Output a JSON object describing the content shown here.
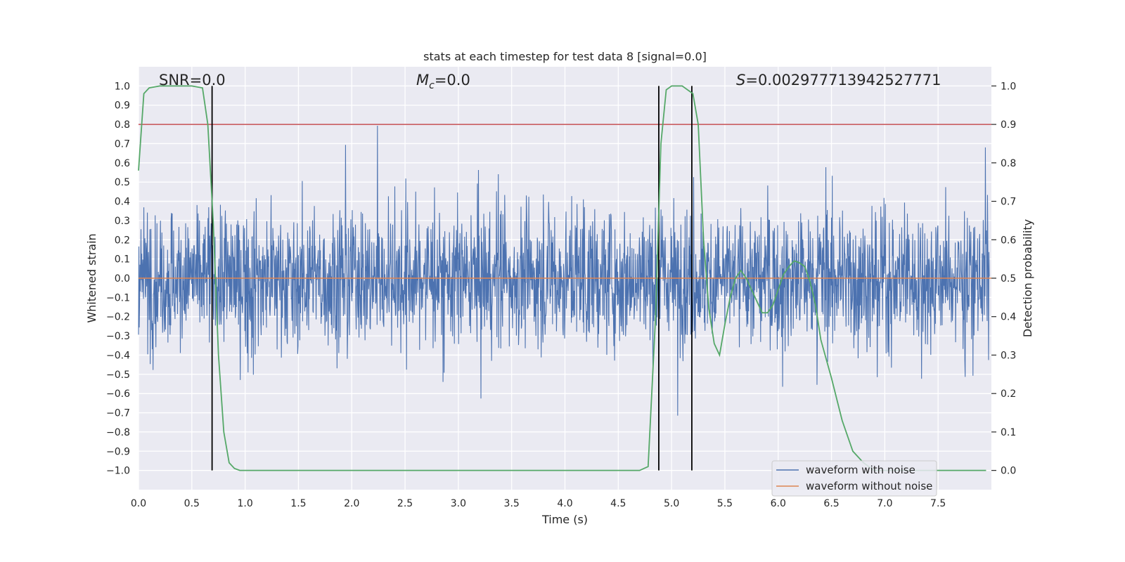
{
  "chart_data": {
    "type": "line",
    "title": "stats at each timestep for test data 8 [signal=0.0]",
    "xlabel": "Time (s)",
    "ylabel": "Whitened strain",
    "ylabel_right": "Detection probability",
    "xlim": [
      0.0,
      8.0
    ],
    "ylim": [
      -1.1,
      1.1
    ],
    "ylim_right": [
      -0.05,
      1.05
    ],
    "x_ticks": [
      "0.0",
      "0.5",
      "1.0",
      "1.5",
      "2.0",
      "2.5",
      "3.0",
      "3.5",
      "4.0",
      "4.5",
      "5.0",
      "5.5",
      "6.0",
      "6.5",
      "7.0",
      "7.5"
    ],
    "y_ticks": [
      "1.0",
      "0.9",
      "0.8",
      "0.7",
      "0.6",
      "0.5",
      "0.4",
      "0.3",
      "0.2",
      "0.1",
      "0.0",
      "−0.1",
      "−0.2",
      "−0.3",
      "−0.4",
      "−0.5",
      "−0.6",
      "−0.7",
      "−0.8",
      "−0.9",
      "−1.0"
    ],
    "y_ticks_right": [
      "1.0",
      "0.9",
      "0.8",
      "0.7",
      "0.6",
      "0.5",
      "0.4",
      "0.3",
      "0.2",
      "0.1",
      "0.0"
    ],
    "grid": true,
    "legend_position": "bottom-right",
    "annotations": {
      "snr": "SNR=0.0",
      "mc_base": "M",
      "mc_sub": "c",
      "mc_rest": "=0.0",
      "s_italic": "S",
      "s_rest": "=0.002977713942527771"
    },
    "series": [
      {
        "name": "waveform with noise",
        "color": "#4c72b0",
        "noise_envelope": 0.45,
        "max_spike": 0.98
      },
      {
        "name": "waveform without noise",
        "color": "#dd8452",
        "values_constant": 0.0
      },
      {
        "role": "detection probability",
        "axis": "right",
        "color": "#55a868",
        "x": [
          0.0,
          0.05,
          0.1,
          0.2,
          0.3,
          0.4,
          0.5,
          0.6,
          0.65,
          0.7,
          0.75,
          0.8,
          0.85,
          0.9,
          0.95,
          1.0,
          1.5,
          2.0,
          2.5,
          3.0,
          3.5,
          4.0,
          4.5,
          4.7,
          4.78,
          4.85,
          4.9,
          4.95,
          5.0,
          5.05,
          5.1,
          5.15,
          5.2,
          5.25,
          5.3,
          5.35,
          5.4,
          5.45,
          5.5,
          5.55,
          5.6,
          5.65,
          5.7,
          5.75,
          5.8,
          5.85,
          5.9,
          5.95,
          6.0,
          6.05,
          6.1,
          6.15,
          6.2,
          6.25,
          6.3,
          6.35,
          6.4,
          6.5,
          6.6,
          6.7,
          6.8,
          6.9,
          7.0,
          7.5,
          7.95
        ],
        "y": [
          0.78,
          0.98,
          0.995,
          1.0,
          1.0,
          1.0,
          1.0,
          0.995,
          0.9,
          0.65,
          0.3,
          0.1,
          0.02,
          0.005,
          0.0,
          0.0,
          0.0,
          0.0,
          0.0,
          0.0,
          0.0,
          0.0,
          0.0,
          0.0,
          0.01,
          0.4,
          0.85,
          0.99,
          1.0,
          1.0,
          1.0,
          0.99,
          0.98,
          0.9,
          0.6,
          0.42,
          0.33,
          0.3,
          0.38,
          0.45,
          0.5,
          0.52,
          0.5,
          0.47,
          0.44,
          0.41,
          0.41,
          0.43,
          0.47,
          0.51,
          0.53,
          0.545,
          0.54,
          0.53,
          0.49,
          0.43,
          0.34,
          0.24,
          0.13,
          0.05,
          0.02,
          0.0,
          0.0,
          0.0,
          0.0
        ]
      },
      {
        "role": "threshold",
        "axis": "right",
        "color": "#c44e52",
        "value": 0.9
      }
    ],
    "vertical_lines_x": [
      0.69,
      4.88,
      5.19
    ]
  }
}
